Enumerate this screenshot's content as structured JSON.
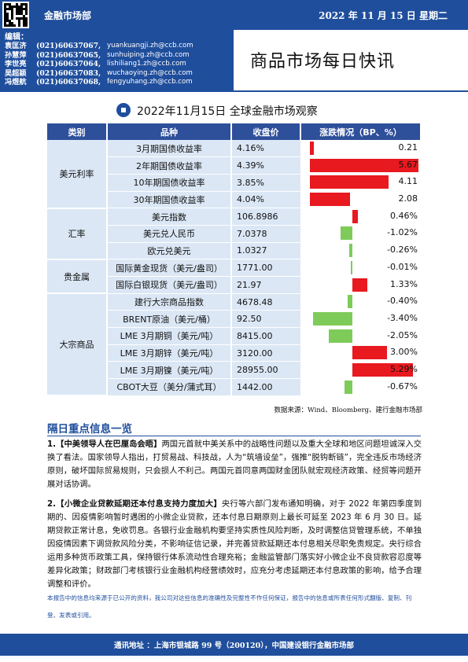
{
  "header": {
    "department": "金融市场部",
    "date": "2022 年 11 月 15 日  星期二",
    "editors_label": "编辑：",
    "editors": [
      {
        "name": "袁匡济",
        "phone": "(021)60637067,",
        "email": "yuankuangji.zh@ccb.com"
      },
      {
        "name": "孙慧萍",
        "phone": "(021)60637065,",
        "email": "sunhuiping.zh@ccb.com"
      },
      {
        "name": "李世亮",
        "phone": "(021)60637064,",
        "email": "lishiliang1.zh@ccb.com"
      },
      {
        "name": "吴超颖",
        "phone": "(021)60637083,",
        "email": "wuchaoying.zh@ccb.com"
      },
      {
        "name": "冯煜航",
        "phone": "(021)60637068,",
        "email": "fengyuhang.zh@ccb.com"
      }
    ],
    "title": "商品市场每日快讯"
  },
  "table": {
    "title": "2022年11月15日  全球金融市场观察",
    "headers": [
      "类别",
      "品种",
      "收盘价",
      "涨跌情况（BP、%）"
    ],
    "max_abs_change": 5.67,
    "groups": [
      {
        "category": "美元利率",
        "rows": [
          {
            "product": "3月期国债收益率",
            "close": "4.16%",
            "change": "0.21",
            "value": 0.21
          },
          {
            "product": "2年期国债收益率",
            "close": "4.39%",
            "change": "5.67",
            "value": 5.67
          },
          {
            "product": "10年期国债收益率",
            "close": "3.85%",
            "change": "4.11",
            "value": 4.11
          },
          {
            "product": "30年期国债收益率",
            "close": "4.04%",
            "change": "2.08",
            "value": 2.08
          }
        ]
      },
      {
        "category": "汇率",
        "rows": [
          {
            "product": "美元指数",
            "close": "106.8986",
            "change": "0.46%",
            "value": 0.46
          },
          {
            "product": "美元兑人民币",
            "close": "7.0378",
            "change": "-1.02%",
            "value": -1.02
          },
          {
            "product": "欧元兑美元",
            "close": "1.0327",
            "change": "-0.26%",
            "value": -0.26
          }
        ]
      },
      {
        "category": "贵金属",
        "rows": [
          {
            "product": "国际黄金现货（美元/盎司）",
            "close": "1771.00",
            "change": "-0.01%",
            "value": -0.01
          },
          {
            "product": "国际白银现货（美元/盎司）",
            "close": "21.97",
            "change": "1.33%",
            "value": 1.33
          }
        ]
      },
      {
        "category": "大宗商品",
        "rows": [
          {
            "product": "建行大宗商品指数",
            "close": "4678.48",
            "change": "-0.40%",
            "value": -0.4
          },
          {
            "product": "BRENT原油（美元/桶）",
            "close": "92.50",
            "change": "-3.40%",
            "value": -3.4
          },
          {
            "product": "LME 3月期铜（美元/吨）",
            "close": "8415.00",
            "change": "-2.05%",
            "value": -2.05
          },
          {
            "product": "LME 3月期锌（美元/吨）",
            "close": "3120.00",
            "change": "3.00%",
            "value": 3.0
          },
          {
            "product": "LME 3月期镍（美元/吨）",
            "close": "28955.00",
            "change": "5.29%",
            "value": 5.29
          },
          {
            "product": "CBOT大豆（美分/蒲式耳）",
            "close": "1442.00",
            "change": "-0.67%",
            "value": -0.67
          }
        ]
      }
    ],
    "source": "数据来源：Wind、Bloomberg、建行金融市场部"
  },
  "news": {
    "heading": "隔日重点信息一览",
    "items": [
      {
        "num": "1.",
        "title": "【中美领导人在巴厘岛会晤】",
        "body": "两国元首就中美关系中的战略性问题以及重大全球和地区问题坦诚深入交换了看法。国家领导人指出，打贸易战、科技战，人为“筑墙设垒”，强推“脱钩断链”，完全违反市场经济原则，破坏国际贸易规则，只会损人不利己。两国元首同意两国财金团队就宏观经济政策、经贸等问题开展对话协调。"
      },
      {
        "num": "2.",
        "title": "【小微企业贷款延期还本付息支持力度加大】",
        "body": "央行等六部门发布通知明确，对于 2022 年第四季度到期的、因疫情影响暂时遇困的小微企业贷款，还本付息日期原则上最长可延至 2023 年 6 月 30 日。延期贷款正常计息，免收罚息。各银行业金融机构要坚持实质性风险判断，及时调整信贷管理系统，不单独因疫情因素下调贷款风险分类，不影响征信记录，并完善贷款延期还本付息相关尽职免责规定。央行综合运用多种货币政策工具，保持银行体系流动性合理充裕；金融监管部门落实好小微企业不良贷款容忍度等差异化政策；财政部门考核银行业金融机构经营绩效时，应充分考虑延期还本付息政策的影响，给予合理调整和评价。"
      }
    ]
  },
  "disclaimer": "本报告中的信息均来源于已公开的资料，我公司对这些信息的准确性及完整性不作任何保证，报告中的信息或所表任何形式翻版、复制、刊登、发表或引用。",
  "footer": "通讯地址 ：上海市银城路 99 号（200120），中国建设银行金融市场部",
  "colors": {
    "brand": "#1f4e9c",
    "up": "#e8191f",
    "down": "#7ecb5a",
    "cell": "#dbe7f5"
  }
}
